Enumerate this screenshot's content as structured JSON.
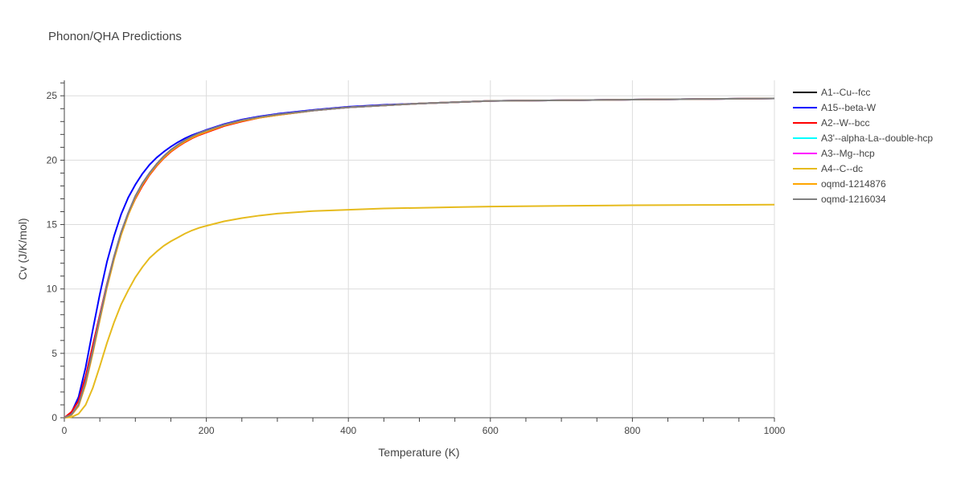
{
  "chart_data": {
    "type": "line",
    "title": "Phonon/QHA Predictions",
    "xlabel": "Temperature (K)",
    "ylabel": "Cv (J/K/mol)",
    "xlim": [
      0,
      1000
    ],
    "ylim": [
      0,
      26.2
    ],
    "x_ticks": [
      0,
      200,
      400,
      600,
      800,
      1000
    ],
    "y_ticks": [
      0,
      5,
      10,
      15,
      20,
      25
    ],
    "grid": true,
    "legend_position": "right",
    "series": [
      {
        "name": "A1--Cu--fcc",
        "color": "#000000",
        "x": [
          0,
          10,
          20,
          30,
          40,
          50,
          60,
          70,
          80,
          90,
          100,
          110,
          120,
          130,
          140,
          150,
          160,
          170,
          180,
          190,
          200,
          225,
          250,
          275,
          300,
          350,
          400,
          450,
          500,
          550,
          600,
          700,
          800,
          900,
          1000
        ],
        "y": [
          0,
          0.25,
          1.0,
          2.8,
          5.2,
          7.8,
          10.3,
          12.5,
          14.4,
          15.9,
          17.2,
          18.2,
          19.0,
          19.7,
          20.3,
          20.8,
          21.2,
          21.55,
          21.85,
          22.1,
          22.3,
          22.75,
          23.1,
          23.35,
          23.55,
          23.85,
          24.1,
          24.25,
          24.4,
          24.5,
          24.6,
          24.65,
          24.7,
          24.75,
          24.8
        ]
      },
      {
        "name": "A15--beta-W",
        "color": "#0000ff",
        "x": [
          0,
          10,
          20,
          30,
          40,
          50,
          60,
          70,
          80,
          90,
          100,
          110,
          120,
          130,
          140,
          150,
          160,
          170,
          180,
          190,
          200,
          225,
          250,
          275,
          300,
          350,
          400,
          450,
          500,
          550,
          600,
          700,
          800,
          900,
          1000
        ],
        "y": [
          0,
          0.4,
          1.6,
          3.9,
          6.8,
          9.6,
          12.1,
          14.1,
          15.8,
          17.1,
          18.1,
          18.95,
          19.65,
          20.2,
          20.65,
          21.05,
          21.4,
          21.7,
          21.95,
          22.15,
          22.35,
          22.8,
          23.15,
          23.4,
          23.6,
          23.9,
          24.15,
          24.3,
          24.4,
          24.5,
          24.6,
          24.65,
          24.7,
          24.75,
          24.8
        ]
      },
      {
        "name": "A2--W--bcc",
        "color": "#ff0000",
        "x": [
          0,
          10,
          20,
          30,
          40,
          50,
          60,
          70,
          80,
          90,
          100,
          110,
          120,
          130,
          140,
          150,
          160,
          170,
          180,
          190,
          200,
          225,
          250,
          275,
          300,
          350,
          400,
          450,
          500,
          550,
          600,
          700,
          800,
          900,
          1000
        ],
        "y": [
          0,
          0.45,
          1.3,
          3.2,
          5.6,
          8.0,
          10.4,
          12.5,
          14.3,
          15.8,
          17.0,
          18.0,
          18.85,
          19.55,
          20.15,
          20.65,
          21.05,
          21.4,
          21.7,
          21.95,
          22.15,
          22.65,
          23.0,
          23.3,
          23.5,
          23.85,
          24.1,
          24.25,
          24.4,
          24.5,
          24.6,
          24.65,
          24.7,
          24.75,
          24.8
        ]
      },
      {
        "name": "A3'--alpha-La--double-hcp",
        "color": "#00ffff",
        "x": [
          0,
          10,
          20,
          30,
          40,
          50,
          60,
          70,
          80,
          90,
          100,
          110,
          120,
          130,
          140,
          150,
          160,
          170,
          180,
          190,
          200,
          225,
          250,
          275,
          300,
          350,
          400,
          450,
          500,
          550,
          600,
          700,
          800,
          900,
          1000
        ],
        "y": [
          0,
          0.25,
          1.0,
          2.8,
          5.2,
          7.8,
          10.3,
          12.5,
          14.4,
          15.9,
          17.2,
          18.2,
          19.0,
          19.7,
          20.3,
          20.8,
          21.2,
          21.55,
          21.85,
          22.1,
          22.3,
          22.75,
          23.1,
          23.35,
          23.55,
          23.85,
          24.1,
          24.25,
          24.4,
          24.5,
          24.6,
          24.65,
          24.7,
          24.75,
          24.8
        ]
      },
      {
        "name": "A3--Mg--hcp",
        "color": "#ff00ff",
        "x": [
          0,
          10,
          20,
          30,
          40,
          50,
          60,
          70,
          80,
          90,
          100,
          110,
          120,
          130,
          140,
          150,
          160,
          170,
          180,
          190,
          200,
          225,
          250,
          275,
          300,
          350,
          400,
          450,
          500,
          550,
          600,
          700,
          800,
          900,
          1000
        ],
        "y": [
          0,
          0.25,
          1.0,
          2.8,
          5.2,
          7.8,
          10.3,
          12.5,
          14.4,
          15.9,
          17.2,
          18.2,
          19.0,
          19.7,
          20.3,
          20.8,
          21.2,
          21.55,
          21.85,
          22.1,
          22.3,
          22.75,
          23.1,
          23.35,
          23.55,
          23.85,
          24.1,
          24.25,
          24.4,
          24.5,
          24.6,
          24.65,
          24.7,
          24.75,
          24.8
        ]
      },
      {
        "name": "A4--C--dc",
        "color": "#e6bb1e",
        "x": [
          0,
          10,
          20,
          30,
          40,
          50,
          60,
          70,
          80,
          90,
          100,
          110,
          120,
          130,
          140,
          150,
          160,
          170,
          180,
          190,
          200,
          225,
          250,
          275,
          300,
          350,
          400,
          450,
          500,
          550,
          600,
          700,
          800,
          900,
          1000
        ],
        "y": [
          0,
          0.05,
          0.3,
          1.0,
          2.3,
          4.0,
          5.8,
          7.4,
          8.8,
          9.9,
          10.9,
          11.7,
          12.4,
          12.9,
          13.35,
          13.7,
          14.0,
          14.3,
          14.55,
          14.75,
          14.9,
          15.25,
          15.5,
          15.7,
          15.85,
          16.05,
          16.15,
          16.25,
          16.3,
          16.35,
          16.4,
          16.45,
          16.5,
          16.52,
          16.55
        ]
      },
      {
        "name": "oqmd-1214876",
        "color": "#ffa500",
        "x": [
          0,
          10,
          20,
          30,
          40,
          50,
          60,
          70,
          80,
          90,
          100,
          110,
          120,
          130,
          140,
          150,
          160,
          170,
          180,
          190,
          200,
          225,
          250,
          275,
          300,
          350,
          400,
          450,
          500,
          550,
          600,
          700,
          800,
          900,
          1000
        ],
        "y": [
          0,
          0.2,
          0.9,
          2.6,
          5.0,
          7.6,
          10.1,
          12.3,
          14.2,
          15.75,
          17.05,
          18.1,
          18.9,
          19.6,
          20.2,
          20.7,
          21.1,
          21.45,
          21.75,
          22.0,
          22.2,
          22.7,
          23.05,
          23.3,
          23.5,
          23.85,
          24.1,
          24.25,
          24.4,
          24.5,
          24.6,
          24.65,
          24.7,
          24.75,
          24.8
        ]
      },
      {
        "name": "oqmd-1216034",
        "color": "#808080",
        "x": [
          0,
          10,
          20,
          30,
          40,
          50,
          60,
          70,
          80,
          90,
          100,
          110,
          120,
          130,
          140,
          150,
          160,
          170,
          180,
          190,
          200,
          225,
          250,
          275,
          300,
          350,
          400,
          450,
          500,
          550,
          600,
          700,
          800,
          900,
          1000
        ],
        "y": [
          0,
          0.25,
          1.0,
          2.8,
          5.2,
          7.8,
          10.3,
          12.5,
          14.4,
          15.9,
          17.2,
          18.2,
          19.0,
          19.7,
          20.3,
          20.8,
          21.2,
          21.55,
          21.85,
          22.1,
          22.3,
          22.75,
          23.1,
          23.35,
          23.55,
          23.85,
          24.1,
          24.25,
          24.4,
          24.5,
          24.6,
          24.65,
          24.7,
          24.75,
          24.8
        ]
      }
    ]
  }
}
